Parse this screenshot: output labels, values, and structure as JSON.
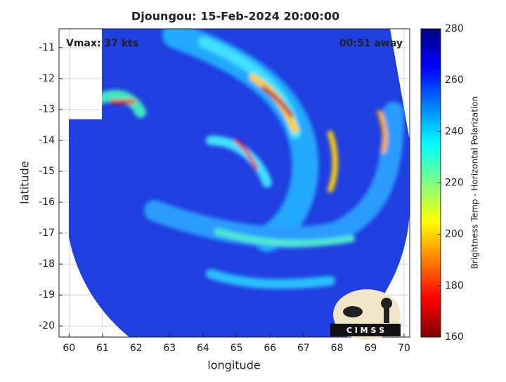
{
  "chart_data": {
    "type": "heatmap",
    "title": "Djoungou: 15-Feb-2024 20:00:00",
    "annotations": [
      "Vmax: 37 kts",
      "00:51 away"
    ],
    "x_label": "longitude",
    "y_label": "latitude",
    "xlim": [
      59.7,
      70.17
    ],
    "ylim": [
      -20.36,
      -10.39
    ],
    "xticks": [
      60,
      61,
      62,
      63,
      64,
      65,
      66,
      67,
      68,
      69,
      70
    ],
    "yticks": [
      -11,
      -12,
      -13,
      -14,
      -15,
      -16,
      -17,
      -18,
      -19,
      -20
    ],
    "grid": true,
    "colorbar": {
      "label": "Brightness Temp - Horizontal Polarization",
      "lim": [
        160,
        280
      ],
      "ticks": [
        160,
        180,
        200,
        220,
        240,
        260,
        280
      ],
      "colormap": "jet_r"
    },
    "logo": "C I M S S"
  }
}
